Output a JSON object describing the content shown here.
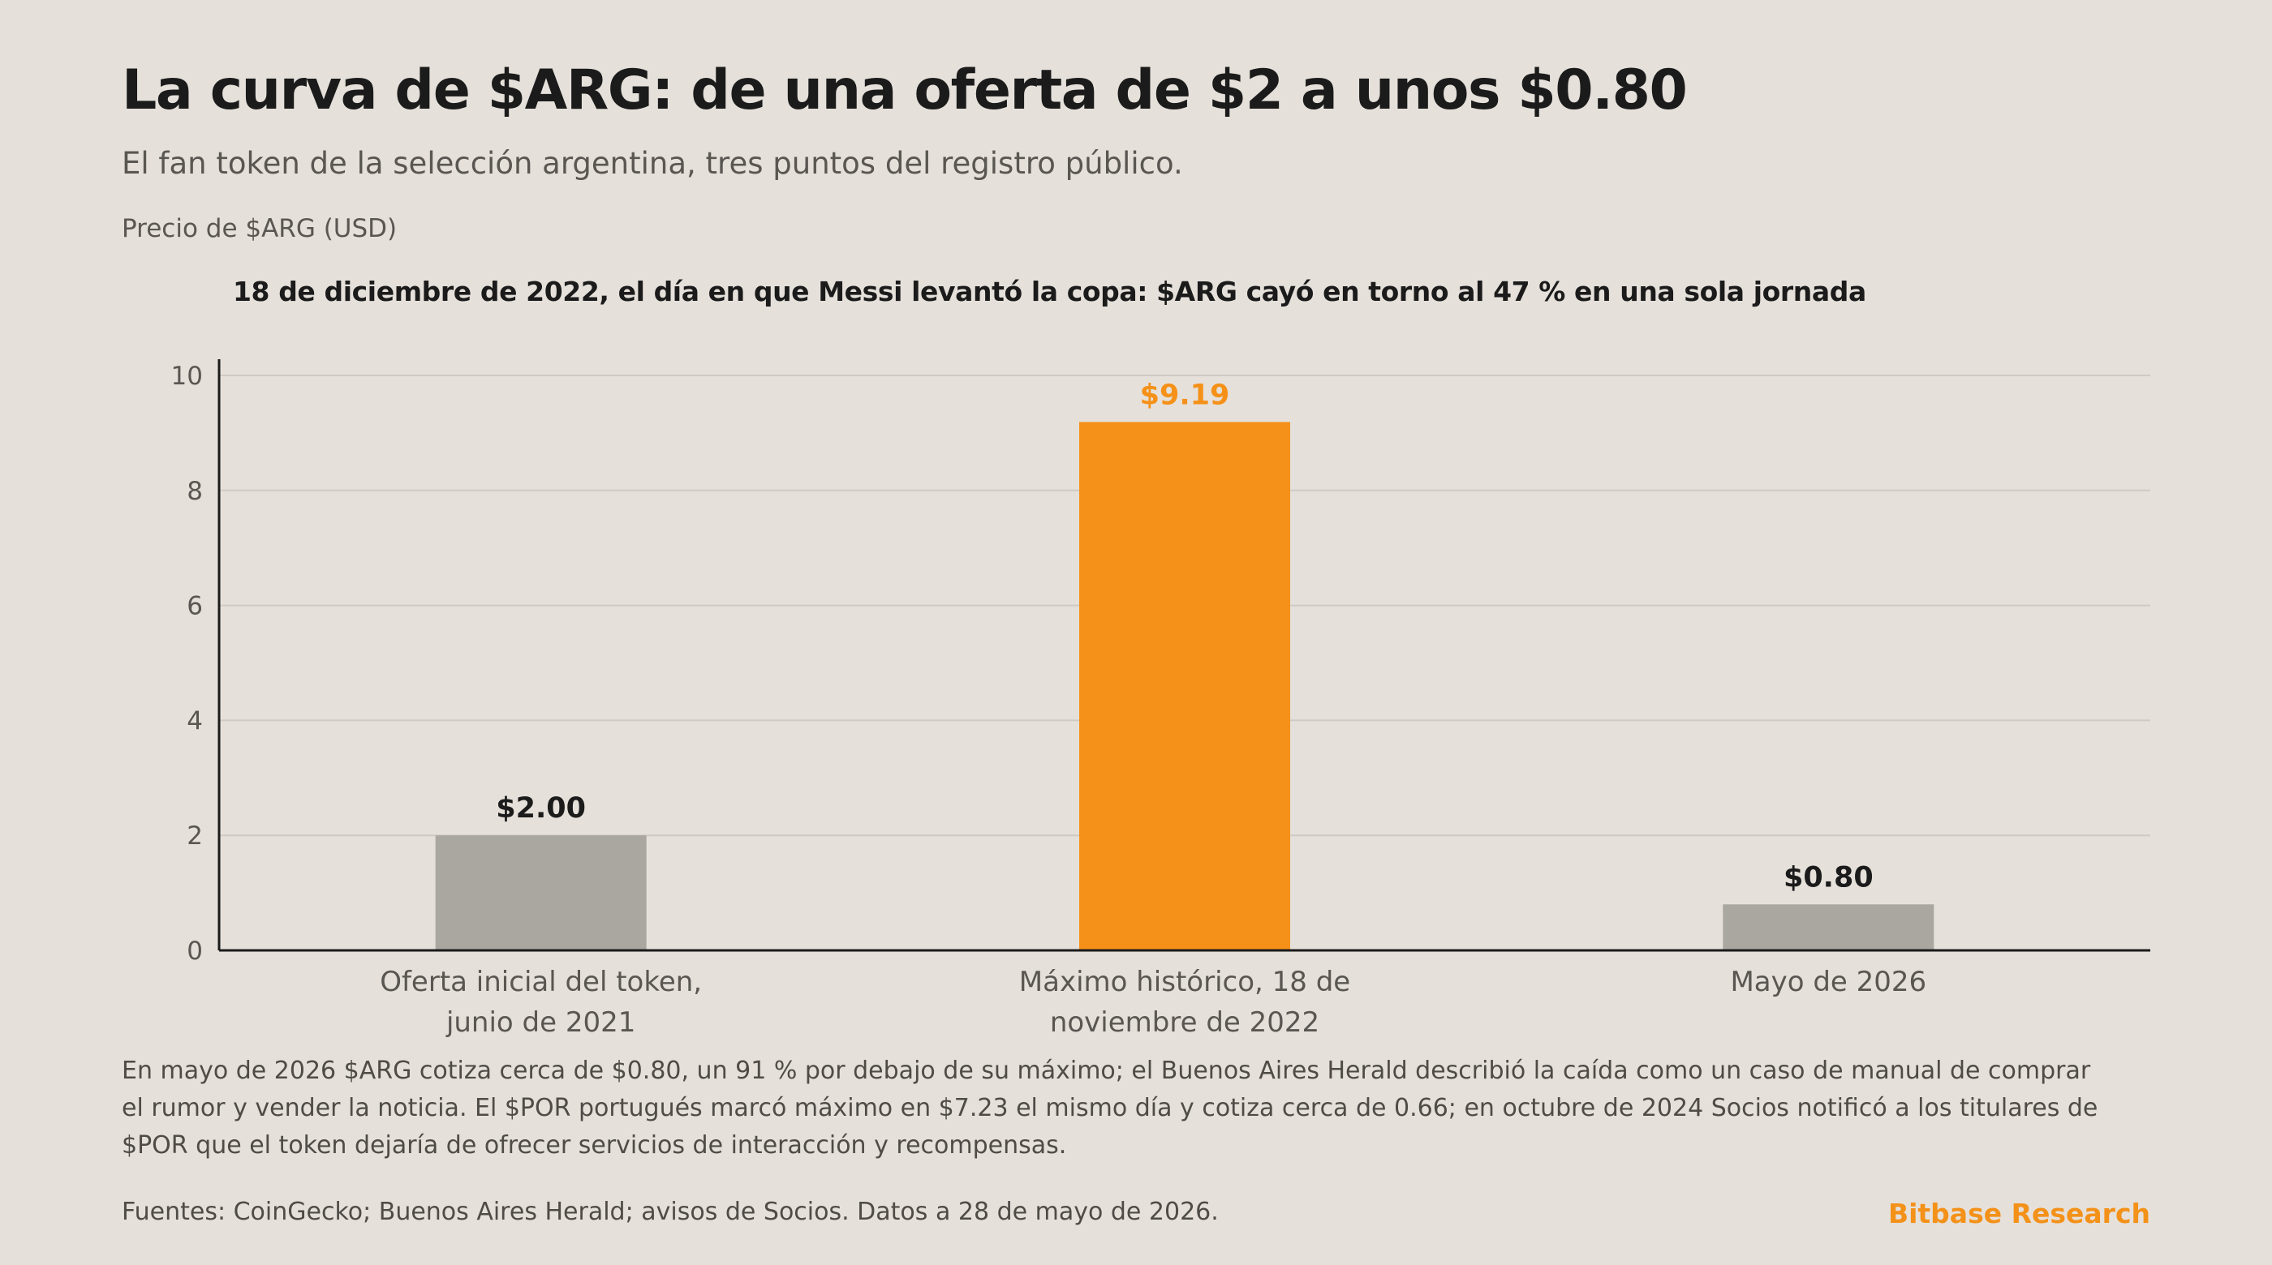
{
  "header": {
    "title": "La curva de $ARG: de una oferta de $2 a unos $0.80",
    "subtitle": "El fan token de la selección argentina, tres puntos del registro público.",
    "axis_label": "Precio de $ARG (USD)",
    "annotation": "18 de diciembre de 2022, el día en que Messi levantó la copa: $ARG cayó en torno al 47 % en una sola jornada"
  },
  "chart_data": {
    "type": "bar",
    "ylabel": "Precio de $ARG (USD)",
    "ylim": [
      0,
      10
    ],
    "yticks": [
      "0",
      "2",
      "4",
      "6",
      "8",
      "10"
    ],
    "grid": true,
    "categories": [
      [
        "Oferta inicial del token,",
        "junio de 2021"
      ],
      [
        "Máximo histórico, 18 de",
        "noviembre de 2022"
      ],
      [
        "Mayo de 2026"
      ]
    ],
    "values": [
      2.0,
      9.19,
      0.8
    ],
    "value_labels": [
      "$2.00",
      "$9.19",
      "$0.80"
    ],
    "colors": [
      "#aaa6a0",
      "#f59118",
      "#aaa6a0"
    ],
    "label_colors": [
      "#1b1b1b",
      "#f59118",
      "#1b1b1b"
    ]
  },
  "footer": {
    "note": "En mayo de 2026 $ARG cotiza cerca de $0.80, un 91 % por debajo de su máximo; el Buenos Aires Herald describió la caída como un caso de manual de comprar el rumor y vender la noticia. El $POR portugués marcó máximo en $7.23 el mismo día y cotiza cerca de 0.66; en octubre de 2024 Socios notificó a los titulares de $POR que el token dejaría de ofrecer servicios de interacción y recompensas.",
    "sources": "Fuentes: CoinGecko; Buenos Aires Herald; avisos de Socios. Datos a 28 de mayo de 2026.",
    "brand": "Bitbase Research"
  }
}
